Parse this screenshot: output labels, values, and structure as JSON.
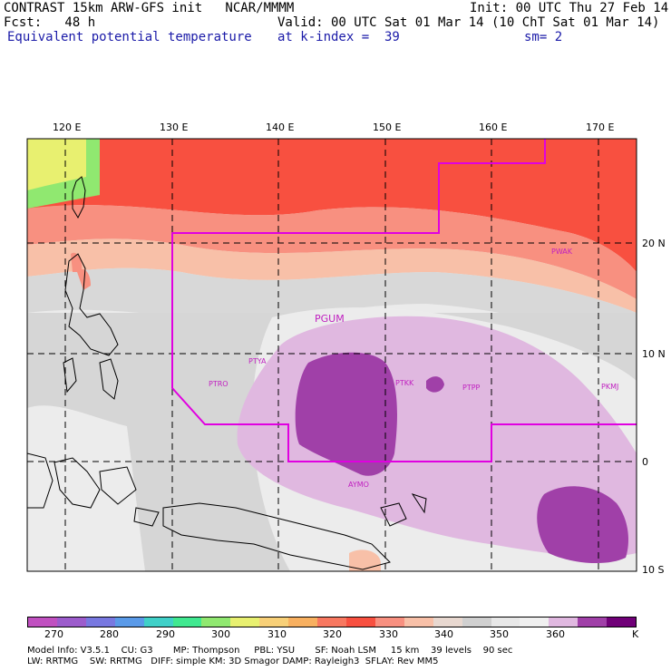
{
  "header": {
    "line1_left": "CONTRAST 15km ARW-GFS init   NCAR/MMMM",
    "line1_right": "Init: 00 UTC Thu 27 Feb 14",
    "line2_left": "Fcst:   48 h",
    "line2_right": "Valid: 00 UTC Sat 01 Mar 14 (10 ChT Sat 01 Mar 14)",
    "line3_left": "Equivalent potential temperature",
    "line3_mid": "at k-index =  39",
    "line3_right": "sm= 2"
  },
  "lon_labels": [
    "120 E",
    "130 E",
    "140 E",
    "150 E",
    "160 E",
    "170 E"
  ],
  "lat_labels": [
    "20 N",
    "10 N",
    "0",
    "10 S"
  ],
  "stations": [
    {
      "id": "PGUM",
      "big": true
    },
    {
      "id": "PTYA"
    },
    {
      "id": "PTRO"
    },
    {
      "id": "PTKK"
    },
    {
      "id": "PTPP"
    },
    {
      "id": "PKMJ"
    },
    {
      "id": "PWAK"
    },
    {
      "id": "AYMO"
    }
  ],
  "colorbar": {
    "labels": [
      "270",
      "280",
      "290",
      "300",
      "310",
      "320",
      "330",
      "340",
      "350",
      "360",
      "K"
    ],
    "colors": [
      "#c050c0",
      "#9c5ccc",
      "#7878e0",
      "#5a9ae8",
      "#40d0c8",
      "#40e890",
      "#90e870",
      "#e8f070",
      "#f8d078",
      "#f8b060",
      "#f87860",
      "#f85040",
      "#f89080",
      "#f8c0a8",
      "#e8d8d0",
      "#d0d0d0",
      "#e8e8e8",
      "#f0f0f0",
      "#e0b8e0",
      "#a040a8",
      "#700078"
    ]
  },
  "footer": {
    "line1": "Model Info: V3.5.1    CU: G3       MP: Thompson     PBL: YSU       SF: Noah LSM     15 km    39 levels    90 sec",
    "line2": "LW: RRTMG    SW: RRTMG   DIFF: simple KM: 3D Smagor DAMP: Rayleigh3  SFLAY: Rev MM5"
  }
}
